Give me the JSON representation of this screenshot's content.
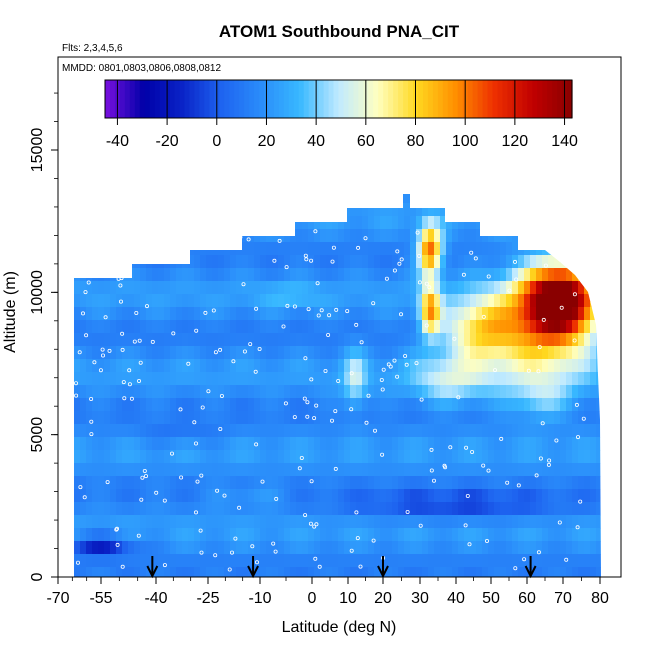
{
  "chart_data": {
    "type": "heatmap",
    "title": "ATOM1 Southbound PNA_CIT",
    "subtitle_flights": "Flts: 2,3,4,5,6",
    "subtitle_dates": "MMDD: 0801,0803,0806,0808,0812",
    "xlabel": "Latitude (deg N)",
    "ylabel": "Altitude (m)",
    "xlim": [
      -70,
      85
    ],
    "ylim": [
      0,
      17000
    ],
    "x_ticks": [
      -70,
      -55,
      -40,
      -25,
      -10,
      0,
      10,
      20,
      30,
      40,
      50,
      60,
      70,
      80
    ],
    "x_tick_labels": [
      "-70",
      "-55",
      "-40",
      "-25",
      "-10",
      "0",
      "10",
      "20",
      "30",
      "40",
      "50",
      "60",
      "70",
      "80"
    ],
    "y_ticks": [
      0,
      5000,
      10000,
      15000
    ],
    "y_tick_labels": [
      "0",
      "5000",
      "10000",
      "15000"
    ],
    "colorbar": {
      "min": -45,
      "max": 143,
      "ticks": [
        -40,
        -20,
        0,
        20,
        40,
        60,
        80,
        100,
        120,
        140
      ],
      "tick_labels": [
        "-40",
        "-20",
        "0",
        "20",
        "40",
        "60",
        "80",
        "100",
        "120",
        "140"
      ],
      "colors": [
        "#7a10e0",
        "#0000a8",
        "#0a24c8",
        "#1e64f0",
        "#2a8cfa",
        "#38b8ff",
        "#c0eaff",
        "#ffffc0",
        "#ffd820",
        "#ff9000",
        "#ee3000",
        "#c00000",
        "#8a0000"
      ]
    },
    "arrows_latitude": [
      -41,
      -12,
      20,
      61
    ],
    "grid": false,
    "legend": "colorbar top, horizontal"
  }
}
